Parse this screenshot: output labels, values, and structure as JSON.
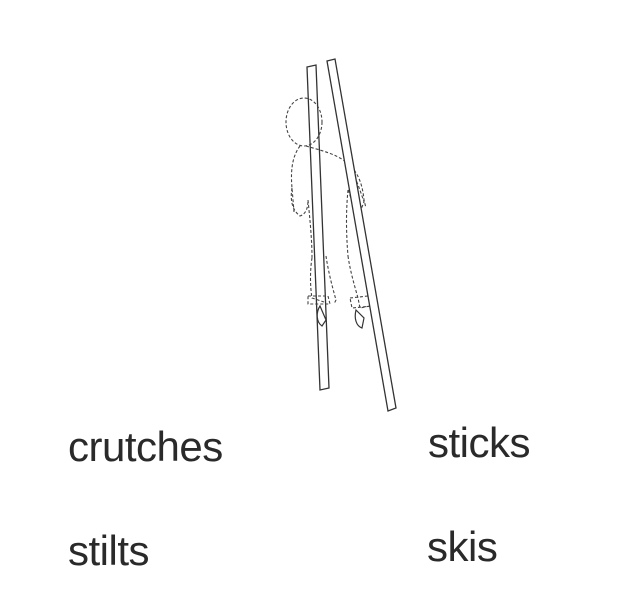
{
  "options": [
    {
      "label": "crutches"
    },
    {
      "label": "sticks"
    },
    {
      "label": "stilts"
    },
    {
      "label": "skis"
    }
  ],
  "illustration": {
    "icon": "person-on-stilts-icon"
  },
  "colors": {
    "text": "#2a2a2a",
    "line": "#333333"
  }
}
